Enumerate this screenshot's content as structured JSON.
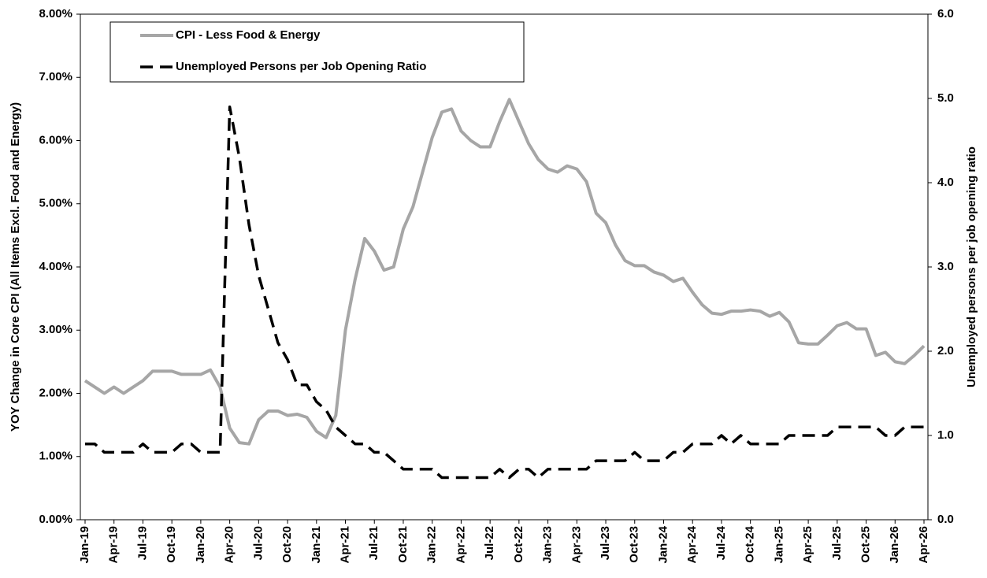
{
  "chart_data": {
    "type": "line",
    "categories": [
      "Jan-19",
      null,
      null,
      "Apr-19",
      null,
      null,
      "Jul-19",
      null,
      null,
      "Oct-19",
      null,
      null,
      "Jan-20",
      null,
      null,
      "Apr-20",
      null,
      null,
      "Jul-20",
      null,
      null,
      "Oct-20",
      null,
      null,
      "Jan-21",
      null,
      null,
      "Apr-21",
      null,
      null,
      "Jul-21",
      null,
      null,
      "Oct-21",
      null,
      null,
      "Jan-22",
      null,
      null,
      "Apr-22",
      null,
      null,
      "Jul-22",
      null,
      null,
      "Oct-22",
      null,
      null,
      "Jan-23",
      null,
      null,
      "Apr-23",
      null,
      null,
      "Jul-23",
      null,
      null,
      "Oct-23",
      null,
      null,
      "Jan-24",
      null,
      null,
      "Apr-24",
      null,
      null,
      "Jul-24",
      null,
      null,
      "Oct-24",
      null,
      null,
      "Jan-25",
      null,
      null,
      "Apr-25",
      null,
      null,
      "Jul-25",
      null,
      null,
      "Oct-25",
      null,
      null,
      "Jan-26",
      null,
      null,
      "Apr-26"
    ],
    "series": [
      {
        "name": "CPI - Less Food & Energy",
        "color": "#a6a6a6",
        "axis": "y",
        "values": [
          2.2,
          2.1,
          2.0,
          2.1,
          2.0,
          2.1,
          2.2,
          2.35,
          2.35,
          2.35,
          2.3,
          2.3,
          2.3,
          2.37,
          2.1,
          1.45,
          1.22,
          1.2,
          1.58,
          1.72,
          1.72,
          1.65,
          1.67,
          1.62,
          1.4,
          1.3,
          1.65,
          3.0,
          3.8,
          4.45,
          4.25,
          3.95,
          4.0,
          4.6,
          4.95,
          5.5,
          6.05,
          6.45,
          6.5,
          6.15,
          6.0,
          5.9,
          5.9,
          6.3,
          6.65,
          6.3,
          5.95,
          5.7,
          5.55,
          5.5,
          5.6,
          5.55,
          5.35,
          4.85,
          4.7,
          4.35,
          4.1,
          4.02,
          4.02,
          3.92,
          3.87,
          3.77,
          3.82,
          3.6,
          3.4,
          3.27,
          3.25,
          3.3,
          3.3,
          3.32,
          3.3,
          3.22,
          3.28,
          3.13,
          2.8,
          2.78,
          2.78,
          2.92,
          3.07,
          3.12,
          3.02,
          3.02,
          2.6,
          2.65,
          2.5,
          2.47,
          2.6,
          2.75
        ]
      },
      {
        "name": "Unemployed Persons per Job Opening Ratio",
        "color": "#000000",
        "axis": "y2",
        "dashed": true,
        "values": [
          0.9,
          0.9,
          0.8,
          0.8,
          0.8,
          0.8,
          0.9,
          0.8,
          0.8,
          0.8,
          0.9,
          0.9,
          0.8,
          0.8,
          0.8,
          4.9,
          4.3,
          3.5,
          2.9,
          2.5,
          2.1,
          1.9,
          1.6,
          1.6,
          1.4,
          1.3,
          1.1,
          1.0,
          0.9,
          0.9,
          0.8,
          0.8,
          0.7,
          0.6,
          0.6,
          0.6,
          0.6,
          0.5,
          0.5,
          0.5,
          0.5,
          0.5,
          0.5,
          0.6,
          0.5,
          0.6,
          0.6,
          0.5,
          0.6,
          0.6,
          0.6,
          0.6,
          0.6,
          0.7,
          0.7,
          0.7,
          0.7,
          0.8,
          0.7,
          0.7,
          0.7,
          0.8,
          0.8,
          0.9,
          0.9,
          0.9,
          1.0,
          0.9,
          1.0,
          0.9,
          0.9,
          0.9,
          0.9,
          1.0,
          1.0,
          1.0,
          1.0,
          1.0,
          1.1,
          1.1,
          1.1,
          1.1,
          1.1,
          1.0,
          1.0,
          1.1,
          1.1,
          1.1
        ]
      }
    ],
    "ylabel": "YOY Change in Core CPI (All Items Excl. Food and Energy)",
    "y2label": "Unemployed persons per job opening ratio",
    "ylim": [
      0,
      8
    ],
    "yticks": [
      {
        "value": 0,
        "label": "0.00%"
      },
      {
        "value": 1,
        "label": "1.00%"
      },
      {
        "value": 2,
        "label": "2.00%"
      },
      {
        "value": 3,
        "label": "3.00%"
      },
      {
        "value": 4,
        "label": "4.00%"
      },
      {
        "value": 5,
        "label": "5.00%"
      },
      {
        "value": 6,
        "label": "6.00%"
      },
      {
        "value": 7,
        "label": "7.00%"
      },
      {
        "value": 8,
        "label": "8.00%"
      }
    ],
    "y2lim": [
      0,
      6
    ],
    "y2ticks": [
      {
        "value": 0,
        "label": "0.0"
      },
      {
        "value": 1,
        "label": "1.0"
      },
      {
        "value": 2,
        "label": "2.0"
      },
      {
        "value": 3,
        "label": "3.0"
      },
      {
        "value": 4,
        "label": "4.0"
      },
      {
        "value": 5,
        "label": "5.0"
      },
      {
        "value": 6,
        "label": "6.0"
      }
    ],
    "legend": "upper left",
    "grid": false
  }
}
